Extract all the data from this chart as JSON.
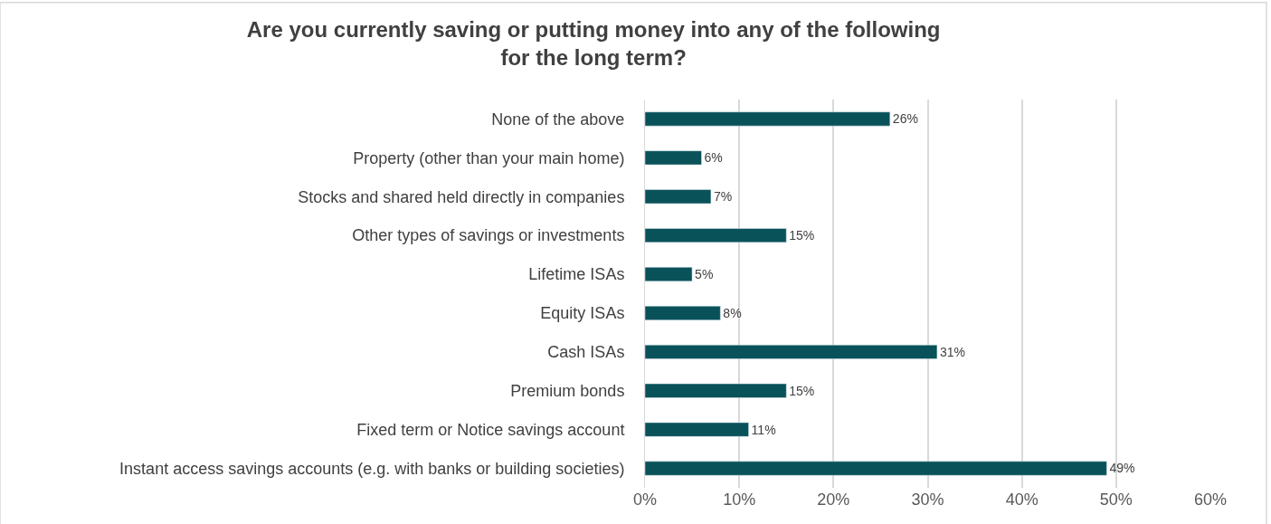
{
  "chart_data": {
    "type": "bar",
    "orientation": "horizontal",
    "title": "Are you currently saving or putting money into any of the following\nfor the long term?",
    "categories": [
      "None of the above",
      "Property (other than your main home)",
      "Stocks and shared held directly in companies",
      "Other types of savings or investments",
      "Lifetime ISAs",
      "Equity ISAs",
      "Cash ISAs",
      "Premium bonds",
      "Fixed term or Notice savings account",
      "Instant access savings accounts (e.g. with banks or building societies)"
    ],
    "values": [
      26,
      6,
      7,
      15,
      5,
      8,
      31,
      15,
      11,
      49
    ],
    "value_labels": [
      "26%",
      "6%",
      "7%",
      "15%",
      "5%",
      "8%",
      "31%",
      "15%",
      "11%",
      "49%"
    ],
    "color": "#0a525a",
    "xlim": [
      0,
      60
    ],
    "xticks": [
      {
        "value": 0,
        "label": "0%"
      },
      {
        "value": 10,
        "label": "10%"
      },
      {
        "value": 20,
        "label": "20%"
      },
      {
        "value": 30,
        "label": "30%"
      },
      {
        "value": 40,
        "label": "40%"
      },
      {
        "value": 50,
        "label": "50%"
      },
      {
        "value": 60,
        "label": "60%"
      }
    ],
    "grid": "x",
    "legend": false
  }
}
